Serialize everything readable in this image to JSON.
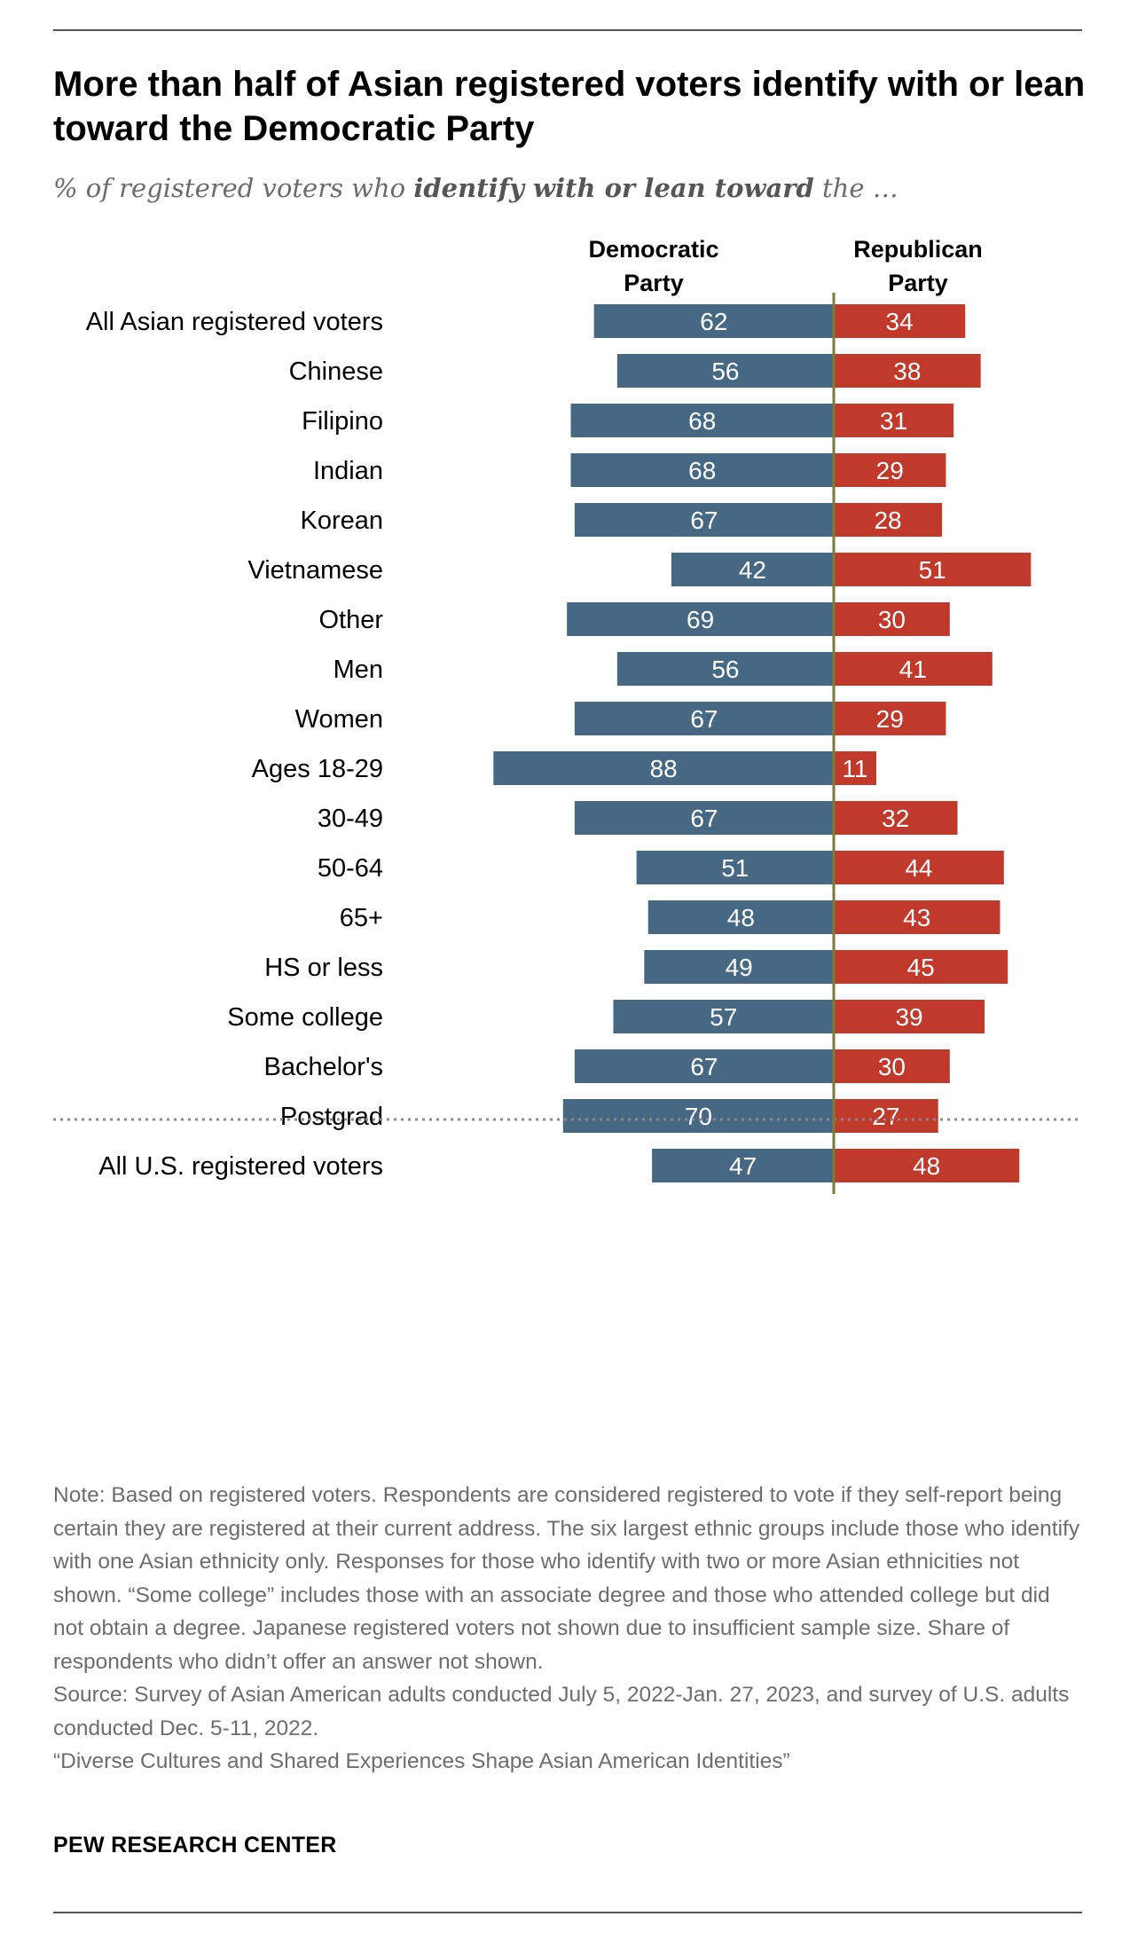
{
  "header": {
    "title": "More than half of Asian registered voters identify with or lean toward the Democratic Party",
    "subtitle_pre": "% of registered voters who ",
    "subtitle_bold": "identify with or lean toward",
    "subtitle_post": " the …"
  },
  "chart_data": {
    "type": "bar",
    "orientation": "horizontal-diverging",
    "title": "More than half of Asian registered voters identify with or lean toward the Democratic Party",
    "column_headers": [
      "Democratic Party",
      "Republican Party"
    ],
    "categories": [
      "All Asian registered voters",
      "Chinese",
      "Filipino",
      "Indian",
      "Korean",
      "Vietnamese",
      "Other",
      "Men",
      "Women",
      "Ages 18-29",
      "30-49",
      "50-64",
      "65+",
      "HS or less",
      "Some college",
      "Bachelor's",
      "Postgrad",
      "All U.S. registered voters"
    ],
    "groups": [
      [
        0
      ],
      [
        1,
        2,
        3,
        4,
        5,
        6
      ],
      [
        7,
        8
      ],
      [
        9,
        10,
        11,
        12
      ],
      [
        13,
        14,
        15,
        16
      ],
      [
        17
      ]
    ],
    "series": [
      {
        "name": "Democratic Party",
        "color": "#466883",
        "values": [
          62,
          56,
          68,
          68,
          67,
          42,
          69,
          56,
          67,
          88,
          67,
          51,
          48,
          49,
          57,
          67,
          70,
          47
        ]
      },
      {
        "name": "Republican Party",
        "color": "#c0392b",
        "values": [
          34,
          38,
          31,
          29,
          28,
          51,
          30,
          41,
          29,
          11,
          32,
          44,
          43,
          45,
          39,
          30,
          27,
          48
        ]
      }
    ],
    "axis_color": "#7a7a3a",
    "xlim": [
      -100,
      100
    ]
  },
  "notes": {
    "note": "Note: Based on registered voters. Respondents are considered registered to vote if they self-report being certain they are registered at their current address. The six largest ethnic groups include those who identify with one Asian ethnicity only. Responses for those who identify with two or more Asian ethnicities not shown. “Some college” includes those with an associate degree and those who attended college but did not obtain a degree. Japanese registered voters not shown due to insufficient sample size. Share of respondents who didn’t offer an answer not shown.",
    "source": "Source: Survey of Asian American adults conducted July 5, 2022-Jan. 27, 2023, and survey of U.S. adults conducted Dec. 5-11, 2022.",
    "report": "“Diverse Cultures and Shared Experiences Shape Asian American Identities”"
  },
  "footer": {
    "logo": "PEW RESEARCH CENTER"
  }
}
